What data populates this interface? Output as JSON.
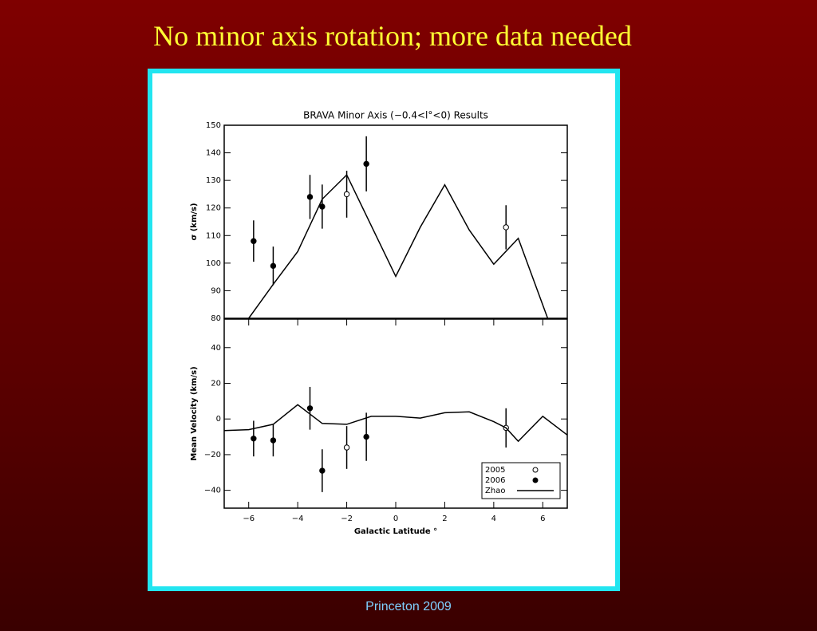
{
  "slide_title": "No minor axis rotation; more data needed",
  "footer": "Princeton 2009",
  "chart_data": [
    {
      "type": "scatter",
      "title": "BRAVA Minor Axis (−0.4<l°<0) Results",
      "ylabel": "σ (km/s)",
      "xlim": [
        -7,
        7
      ],
      "ylim": [
        80,
        150
      ],
      "yticks": [
        80,
        90,
        100,
        110,
        120,
        130,
        140,
        150
      ],
      "series": [
        {
          "marker": "filled",
          "color": "#000000",
          "x": [
            -5.8,
            -5,
            -3.5,
            -3,
            -1.2
          ],
          "values": [
            108,
            99,
            124,
            120.5,
            136
          ],
          "errors": [
            7.5,
            7,
            8,
            8,
            10
          ]
        },
        {
          "marker": "open",
          "color": "#000000",
          "x": [
            -2,
            4.5
          ],
          "values": [
            125,
            113
          ],
          "errors": [
            8.5,
            8
          ]
        },
        {
          "marker": "line",
          "color": "#000000",
          "x": [
            -6,
            -5,
            -4,
            -3,
            -2,
            0,
            1,
            2,
            3,
            4,
            5,
            6.2
          ],
          "values": [
            80,
            92.3,
            104.2,
            123.2,
            132,
            95.2,
            113,
            128.4,
            112,
            99.6,
            109,
            80
          ]
        }
      ]
    },
    {
      "type": "scatter",
      "xlabel": "Galactic Latitude °",
      "ylabel": "Mean Velocity (km/s)",
      "xlim": [
        -7,
        7
      ],
      "ylim": [
        -50,
        56
      ],
      "xticks": [
        {
          "value": -6,
          "label": "−6"
        },
        {
          "value": -4,
          "label": "−4"
        },
        {
          "value": -2,
          "label": "−2"
        },
        0,
        2,
        4,
        6
      ],
      "yticks": [
        {
          "value": -40,
          "label": "−40"
        },
        {
          "value": -20,
          "label": "−20"
        },
        0,
        20,
        40
      ],
      "legend": "lower right",
      "series": [
        {
          "name": "2005",
          "marker": "open",
          "color": "#000000",
          "x": [
            -2,
            4.5
          ],
          "values": [
            -16,
            -5
          ],
          "errors": [
            12,
            11
          ]
        },
        {
          "name": "2006",
          "marker": "filled",
          "color": "#000000",
          "x": [
            -5.8,
            -5,
            -3.5,
            -3,
            -1.2
          ],
          "values": [
            -11,
            -12,
            6,
            -29,
            -10
          ],
          "errors": [
            10,
            9,
            12,
            12,
            13.5
          ]
        },
        {
          "name": "Zhao",
          "marker": "line",
          "color": "#000000",
          "x": [
            -7,
            -6,
            -5,
            -4,
            -3,
            -2,
            -1,
            0,
            1,
            2,
            3,
            4,
            4.5,
            5,
            6,
            7
          ],
          "values": [
            -6.5,
            -6,
            -3,
            8,
            -2.5,
            -3,
            1.5,
            1.5,
            0.5,
            3.5,
            4,
            -1.5,
            -5,
            -12.5,
            1.5,
            -9
          ]
        }
      ]
    }
  ]
}
